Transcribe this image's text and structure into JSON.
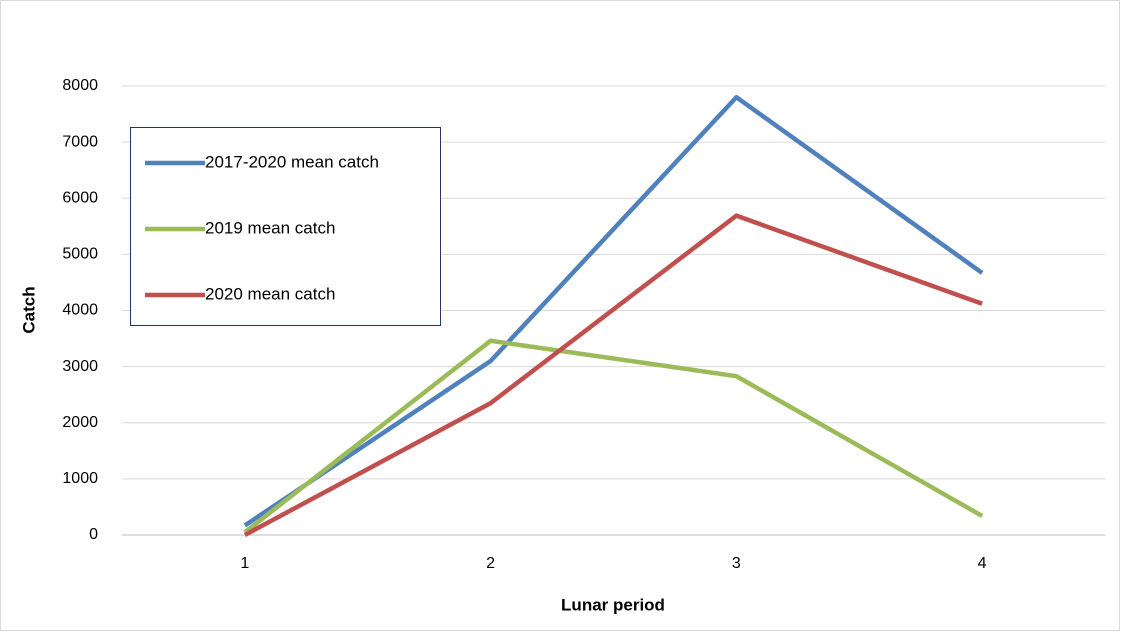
{
  "chart_data": {
    "type": "line",
    "x_label": "Lunar period",
    "y_label": "Catch",
    "categories": [
      "1",
      "2",
      "3",
      "4"
    ],
    "series": [
      {
        "name": "2017-2020 mean catch",
        "color": "#4f81bd",
        "values": [
          170,
          3100,
          7800,
          4670
        ]
      },
      {
        "name": "2019 mean catch",
        "color": "#9bbb59",
        "values": [
          50,
          3460,
          2830,
          340
        ]
      },
      {
        "name": "2020 mean catch",
        "color": "#c0504d",
        "values": [
          0,
          2350,
          5690,
          4120
        ]
      }
    ],
    "ylim": [
      0,
      8000
    ],
    "yticks": [
      0,
      1000,
      2000,
      3000,
      4000,
      5000,
      6000,
      7000,
      8000
    ],
    "grid": true,
    "legend": "upper-left"
  }
}
